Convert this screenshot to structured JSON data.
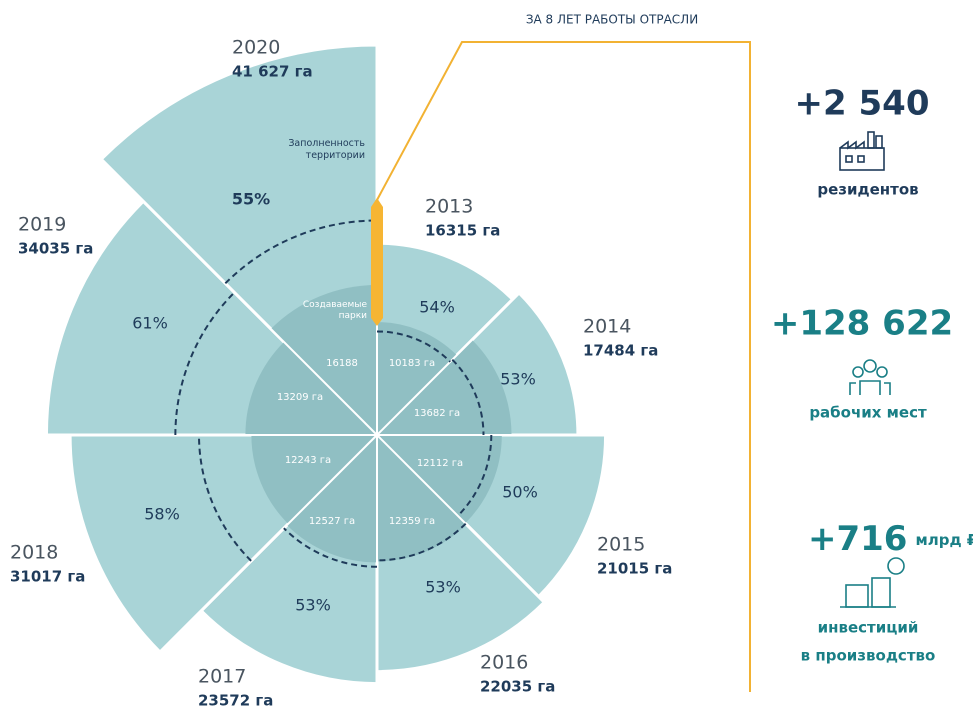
{
  "chart_data": {
    "type": "polar",
    "categories": [
      "2013",
      "2014",
      "2015",
      "2016",
      "2017",
      "2018",
      "2019",
      "2020"
    ],
    "values": [
      16315,
      17484,
      21015,
      22035,
      23572,
      31017,
      34035,
      41627
    ],
    "value_labels": [
      "16315 га",
      "17484 га",
      "21015 га",
      "22035 га",
      "23572 га",
      "31017 га",
      "34035  га",
      "41 627 га"
    ],
    "inner_values": [
      10183,
      13682,
      12112,
      12359,
      12527,
      12243,
      13209,
      16188
    ],
    "inner_value_labels": [
      "10183 га",
      "13682 га",
      "12112 га",
      "12359 га",
      "12527 га",
      "12243 га",
      "13209 га",
      "16188"
    ],
    "percent_values": [
      54,
      53,
      50,
      53,
      53,
      58,
      61,
      55
    ],
    "percent_labels": [
      "54%",
      "53%",
      "50%",
      "53%",
      "53%",
      "58%",
      "61%",
      "55%"
    ],
    "color": "#a9d4d7",
    "inner_color": "#90bfc3",
    "annotations": {
      "filled": "Заполненность территории",
      "parks": "Создаваемые парки",
      "period": "ЗА 8 ЛЕТ РАБОТЫ ОТРАСЛИ"
    }
  },
  "stats": [
    {
      "value": "+2 540",
      "caption": [
        "резидентов"
      ]
    },
    {
      "value": "+128 622",
      "caption": [
        "рабочих мест"
      ]
    },
    {
      "value": "+716",
      "unit": "млрд ₽",
      "caption": [
        "инвестиций",
        "в производство"
      ]
    }
  ]
}
